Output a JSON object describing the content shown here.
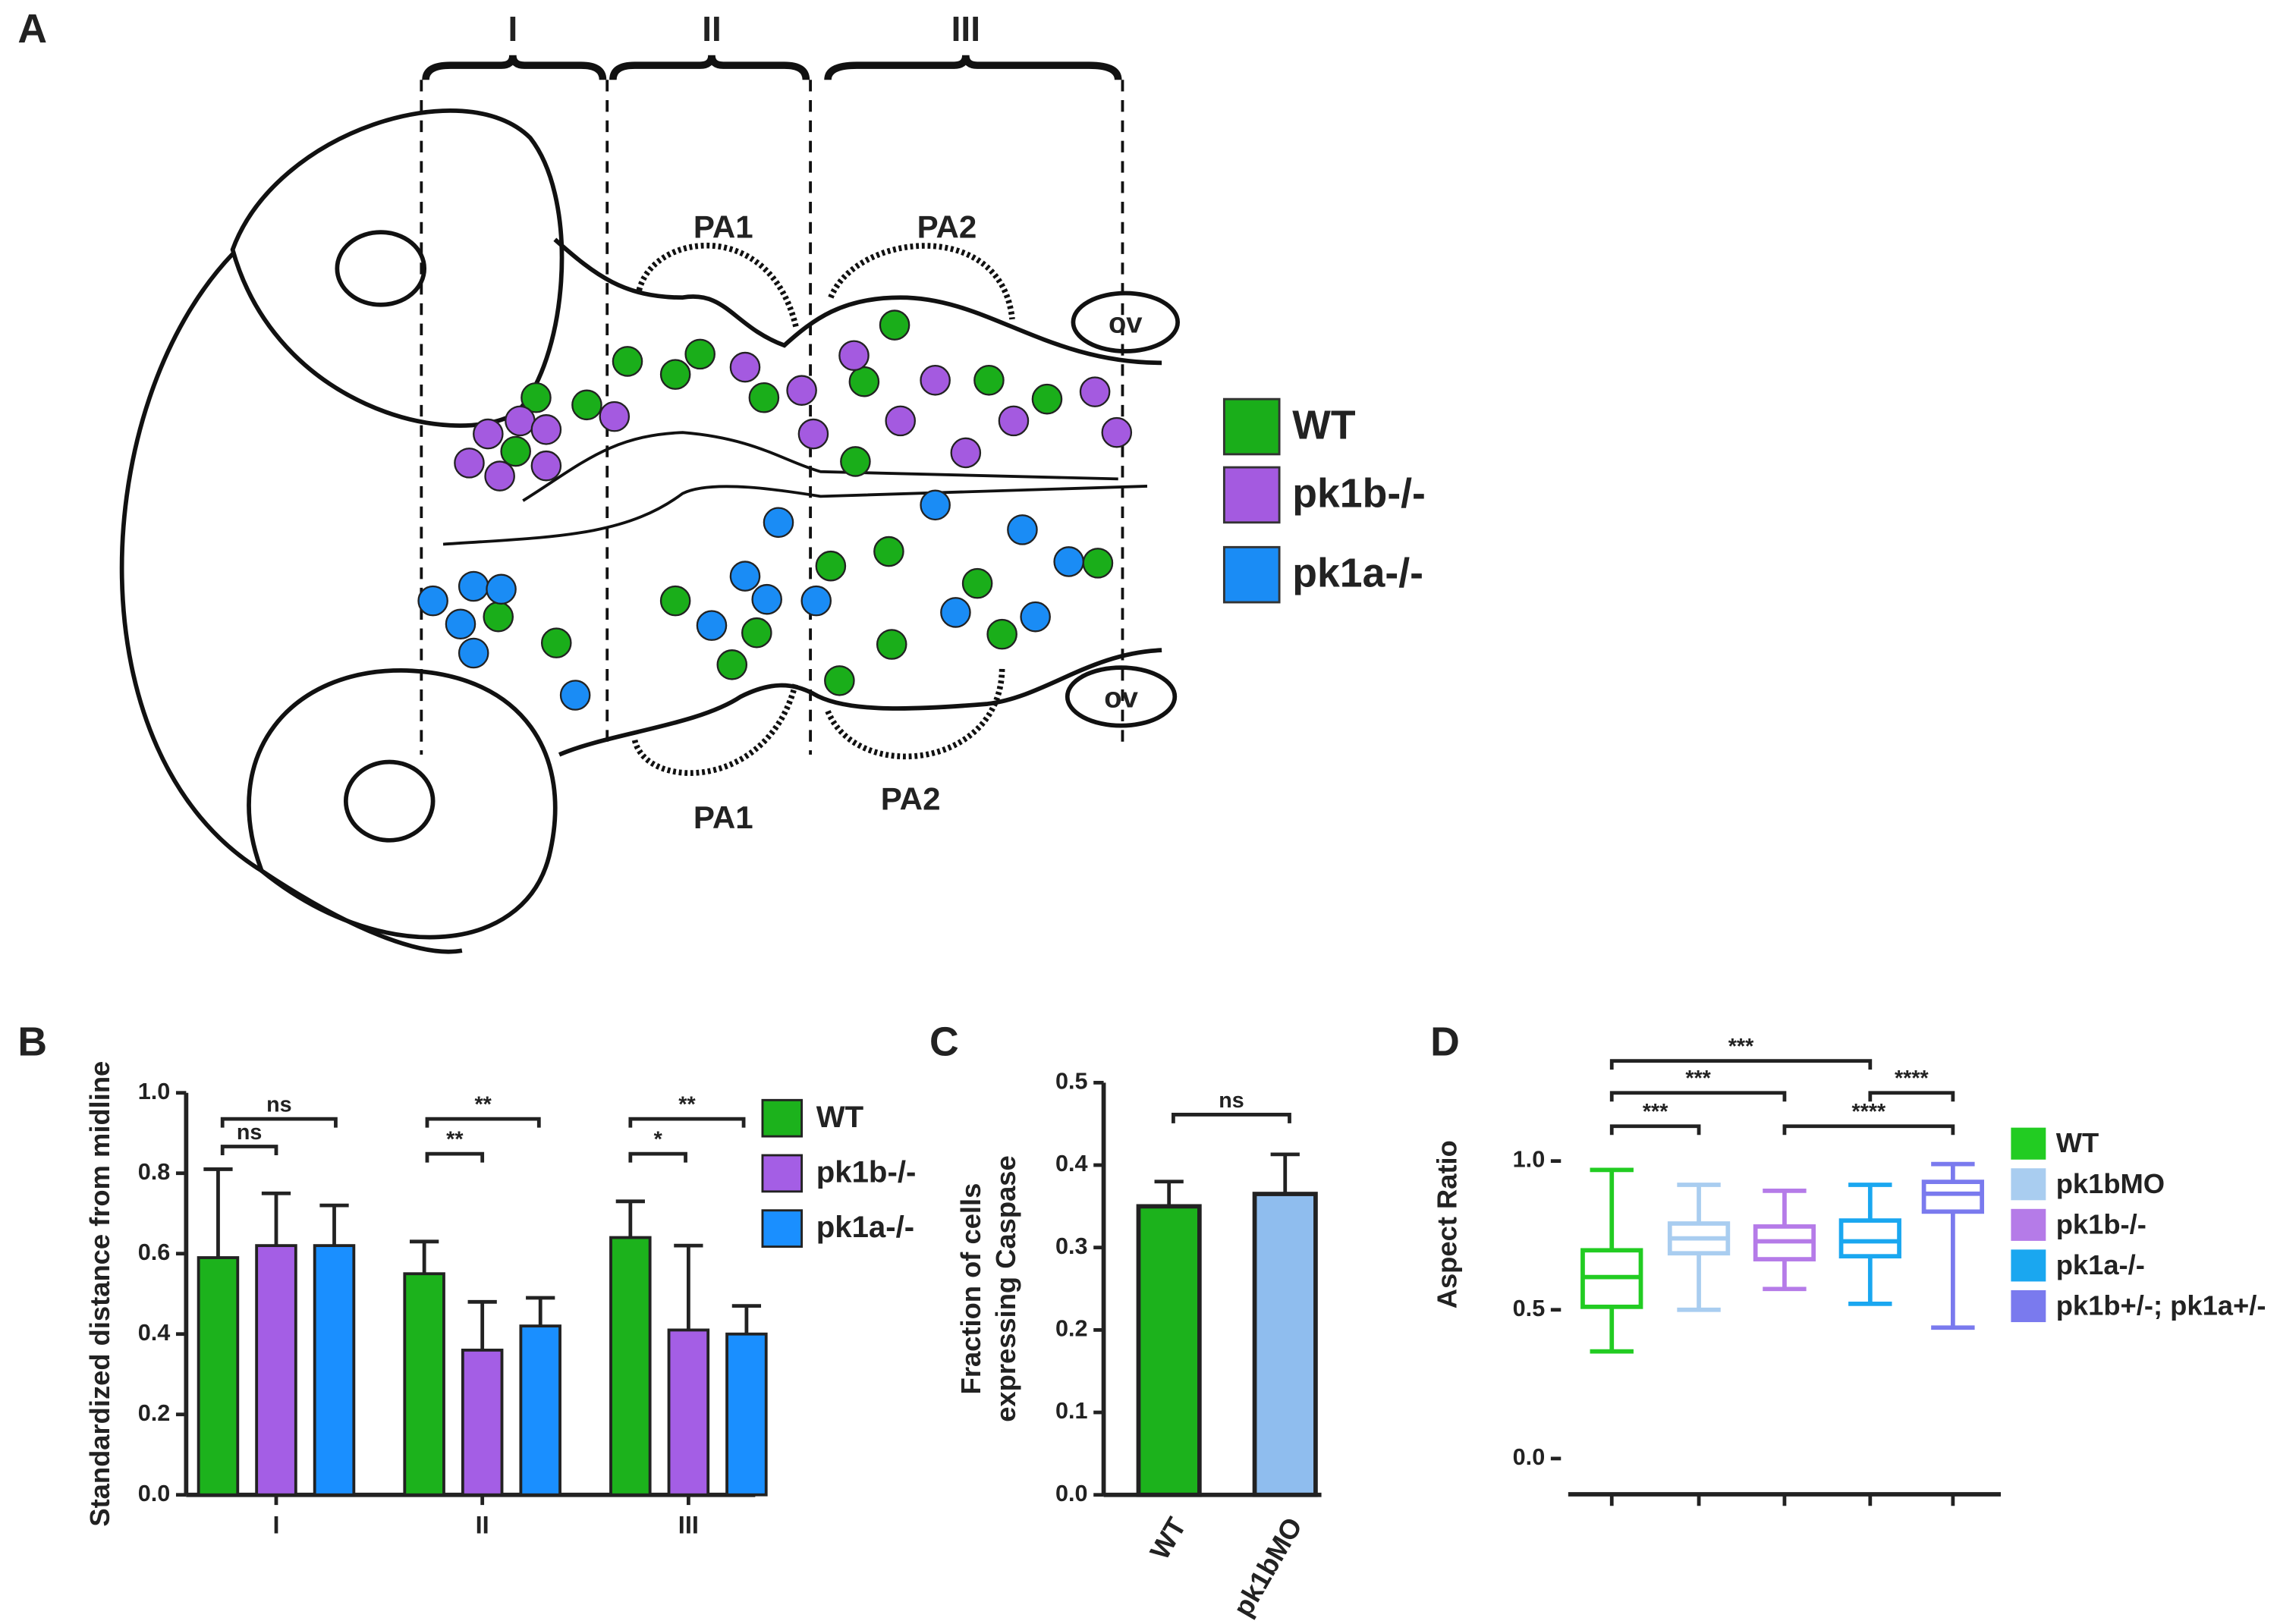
{
  "diagram": {
    "panel": "A",
    "regions": [
      "I",
      "II",
      "III"
    ],
    "arches": [
      "PA1",
      "PA2",
      "PA1",
      "PA2"
    ],
    "vesicles": [
      "ov",
      "ov"
    ],
    "legend": [
      {
        "name": "WT",
        "color": "#1aae1a"
      },
      {
        "name": "pk1b-/-",
        "color": "#a45ae0"
      },
      {
        "name": "pk1a-/-",
        "color": "#1a8cf5"
      }
    ]
  },
  "chart_data": [
    {
      "type": "bar",
      "panel": "B",
      "ylabel": "Standardized distance from midline",
      "categories": [
        "I",
        "II",
        "III"
      ],
      "series": [
        {
          "name": "WT",
          "color": "#1cb21c",
          "values": [
            0.59,
            0.55,
            0.64
          ],
          "errors": [
            0.22,
            0.08,
            0.09
          ]
        },
        {
          "name": "pk1b-/-",
          "color": "#a45ee5",
          "values": [
            0.62,
            0.36,
            0.41
          ],
          "errors": [
            0.13,
            0.12,
            0.21
          ]
        },
        {
          "name": "pk1a-/-",
          "color": "#1a8fff",
          "values": [
            0.62,
            0.42,
            0.4
          ],
          "errors": [
            0.1,
            0.07,
            0.07
          ]
        }
      ],
      "ylim": [
        0,
        1
      ],
      "yticks": [
        {
          "value": 0,
          "label": "0.0"
        },
        0.2,
        0.4,
        0.6,
        0.8,
        {
          "value": 1,
          "label": "1.0"
        }
      ],
      "annotations": [
        "ns",
        "ns",
        "**",
        "**",
        "*",
        "**"
      ]
    },
    {
      "type": "bar",
      "panel": "C",
      "ylabel": [
        "Fraction of cells",
        "expressing Caspase"
      ],
      "categories": [
        "WT",
        "pk1bMO"
      ],
      "values": [
        0.35,
        0.365
      ],
      "errors": [
        0.03,
        0.048
      ],
      "colors": [
        "#1cb21c",
        "#8fbdee"
      ],
      "ylim": [
        0,
        0.5
      ],
      "yticks": [
        {
          "value": 0,
          "label": "0.0"
        },
        0.1,
        0.2,
        0.3,
        0.4,
        0.5
      ],
      "annotations": [
        "ns"
      ]
    },
    {
      "type": "box",
      "panel": "D",
      "ylabel": "Aspect Ratio",
      "series": [
        {
          "name": "WT",
          "color": "#22cc22",
          "min": 0.36,
          "q1": 0.51,
          "median": 0.61,
          "q3": 0.7,
          "max": 0.97
        },
        {
          "name": "pk1bMO",
          "color": "#a9cdf0",
          "min": 0.5,
          "q1": 0.69,
          "median": 0.74,
          "q3": 0.79,
          "max": 0.92
        },
        {
          "name": "pk1b-/-",
          "color": "#b57be8",
          "min": 0.57,
          "q1": 0.67,
          "median": 0.73,
          "q3": 0.78,
          "max": 0.9
        },
        {
          "name": "pk1a-/-",
          "color": "#1aa7f0",
          "min": 0.52,
          "q1": 0.68,
          "median": 0.73,
          "q3": 0.8,
          "max": 0.92
        },
        {
          "name": "pk1b+/-; pk1a+/-",
          "color": "#7a7aee",
          "min": 0.44,
          "q1": 0.83,
          "median": 0.89,
          "q3": 0.93,
          "max": 0.99
        }
      ],
      "ylim": [
        -0.12,
        1.45
      ],
      "yticks": [
        {
          "value": 0,
          "label": "0.0"
        },
        0.5,
        {
          "value": 1,
          "label": "1.0"
        }
      ],
      "annotations": [
        "***",
        "***",
        "***",
        "****",
        "****"
      ]
    }
  ]
}
